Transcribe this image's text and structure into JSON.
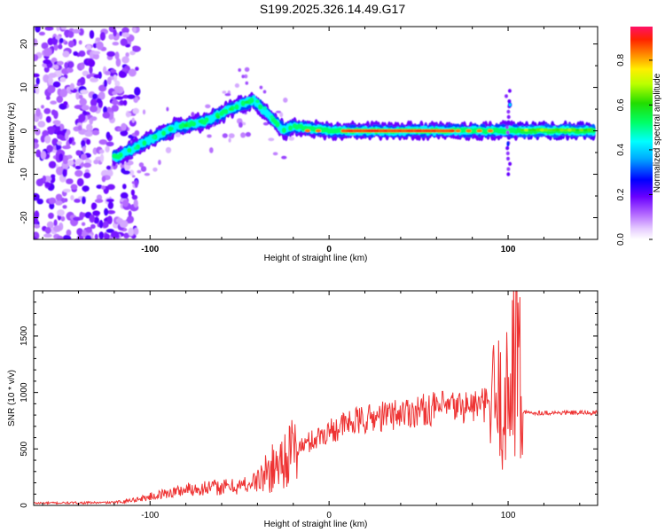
{
  "page": {
    "title": "S199.2025.326.14.49.G17"
  },
  "chart_data": [
    {
      "type": "heatmap",
      "title": "S199.2025.326.14.49.G17",
      "xlabel": "Height of straight line (km)",
      "ylabel": "Frequency (Hz)",
      "xlim": [
        -165,
        150
      ],
      "ylim": [
        -25,
        24
      ],
      "xticks": [
        -100,
        0,
        100
      ],
      "yticks": [
        -20,
        -10,
        0,
        10,
        20
      ],
      "colorbar": {
        "label": "Normalized spectral amplitude",
        "range": [
          0,
          0.95
        ],
        "ticks": [
          0.0,
          0.2,
          0.4,
          0.6,
          0.8
        ]
      },
      "ridge": {
        "description": "Dominant frequency ridge",
        "x": [
          -118,
          -100,
          -85,
          -70,
          -60,
          -50,
          -42,
          -35,
          -25,
          -20,
          0,
          50,
          100,
          150
        ],
        "frequency": [
          -6,
          -2,
          1,
          2,
          4,
          6,
          7,
          4,
          0,
          1,
          0,
          0,
          0,
          0
        ]
      }
    },
    {
      "type": "line",
      "xlabel": "Height of straight line (km)",
      "ylabel": "SNR (10 * v/v)",
      "xlim": [
        -165,
        150
      ],
      "ylim": [
        0,
        1900
      ],
      "xticks": [
        -100,
        0,
        100
      ],
      "yticks": [
        0,
        500,
        1000,
        1500
      ],
      "color": "#ee3333",
      "envelope": {
        "x": [
          -165,
          -120,
          -105,
          -90,
          -80,
          -70,
          -60,
          -50,
          -40,
          -30,
          -25,
          -20,
          -10,
          0,
          10,
          20,
          40,
          60,
          80,
          95,
          100,
          105,
          108,
          150
        ],
        "snr": [
          20,
          25,
          60,
          110,
          140,
          155,
          160,
          170,
          215,
          350,
          420,
          480,
          570,
          660,
          720,
          760,
          820,
          860,
          880,
          900,
          920,
          1000,
          820,
          820
        ]
      }
    }
  ]
}
